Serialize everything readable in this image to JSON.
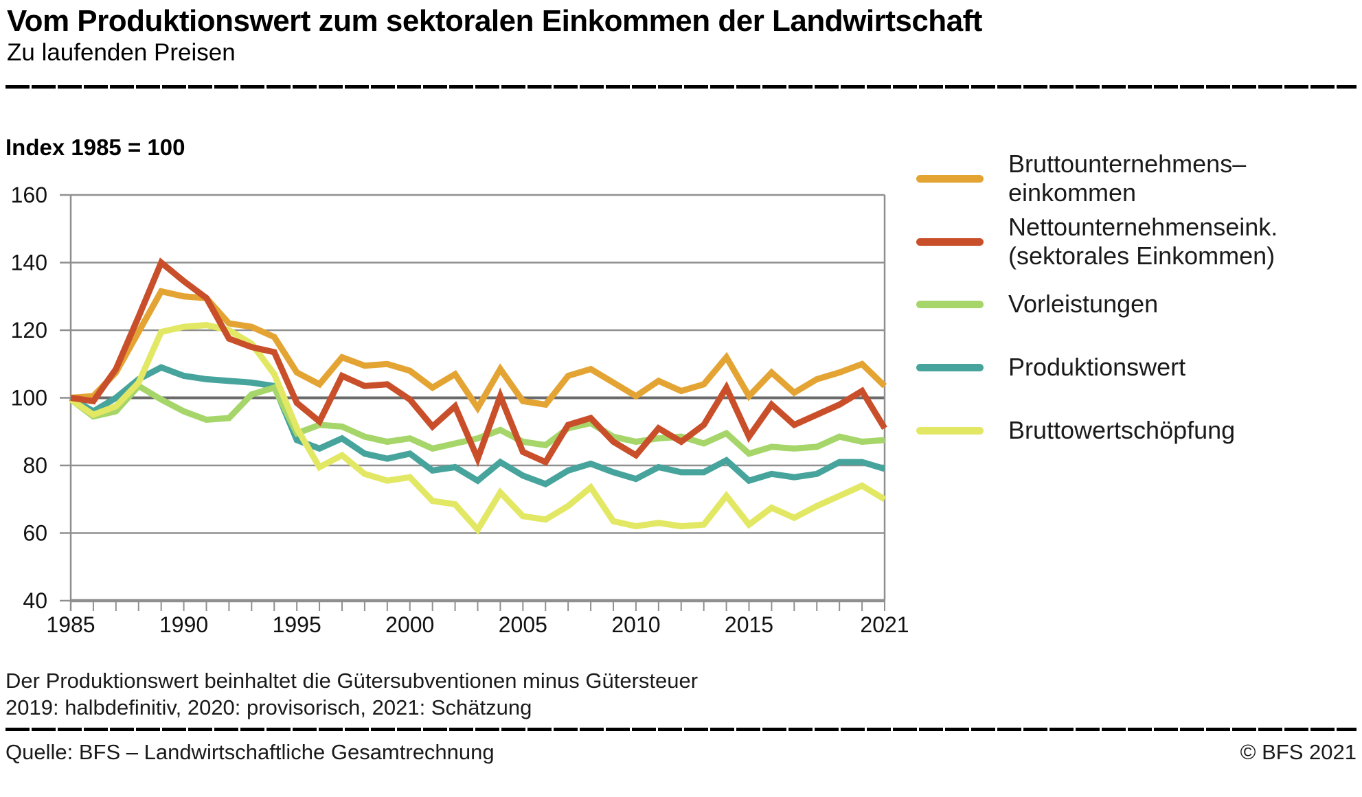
{
  "header": {
    "title": "Vom Produktionswert zum sektoralen Einkommen der Landwirtschaft",
    "subtitle": "Zu laufenden Preisen"
  },
  "colors": {
    "orange": "#E4A433",
    "red": "#C94F2A",
    "green": "#A6D66A",
    "teal": "#46A49C",
    "yellow": "#E2E863",
    "gridline": "#8F8F8F",
    "gridline_dark": "#6B6B6B",
    "axis_text": "#111111"
  },
  "legend": {
    "items": [
      {
        "id": "bruttounternehmenseinkommen",
        "color": "orange",
        "lines": [
          "Bruttounternehmens–",
          "einkommen"
        ]
      },
      {
        "id": "nettounternehmenseinkommen",
        "color": "red",
        "lines": [
          "Nettounternehmenseink.",
          "(sektorales Einkommen)"
        ]
      },
      {
        "id": "vorleistungen",
        "color": "green",
        "lines": [
          "Vorleistungen"
        ]
      },
      {
        "id": "produktionswert",
        "color": "teal",
        "lines": [
          "Produktionswert"
        ]
      },
      {
        "id": "bruttowertschoepfung",
        "color": "yellow",
        "lines": [
          "Bruttowertschöpfung"
        ]
      }
    ]
  },
  "chart_data": {
    "type": "line",
    "ylabel": "Index 1985 = 100",
    "xlabel": "",
    "ylim": [
      40,
      160
    ],
    "grid": true,
    "legend_position": "right",
    "y_ticks": [
      160,
      140,
      120,
      100,
      80,
      60,
      40
    ],
    "x_tick_years": [
      1985,
      1990,
      1995,
      2000,
      2005,
      2010,
      2015,
      2021
    ],
    "x": [
      1985,
      1986,
      1987,
      1988,
      1989,
      1990,
      1991,
      1992,
      1993,
      1994,
      1995,
      1996,
      1997,
      1998,
      1999,
      2000,
      2001,
      2002,
      2003,
      2004,
      2005,
      2006,
      2007,
      2008,
      2009,
      2010,
      2011,
      2012,
      2013,
      2014,
      2015,
      2016,
      2017,
      2018,
      2019,
      2020,
      2021
    ],
    "series": [
      {
        "id": "bruttounternehmenseinkommen",
        "name": "Bruttounternehmenseinkommen",
        "color": "orange",
        "z": 4,
        "values": [
          100,
          100.5,
          107.5,
          119.5,
          131.5,
          130,
          129.5,
          122,
          121,
          118,
          107.5,
          104,
          112,
          109.5,
          110,
          108,
          103,
          107,
          97,
          108.5,
          99,
          98,
          106.5,
          108.5,
          104.5,
          100.5,
          105,
          102,
          104,
          112,
          100.5,
          107.5,
          101.5,
          105.5,
          107.5,
          110,
          103.5
        ]
      },
      {
        "id": "nettounternehmenseinkommen",
        "name": "Nettounternehmenseink. (sektorales Einkommen)",
        "color": "red",
        "z": 5,
        "values": [
          100,
          99,
          108.5,
          124,
          140,
          134.5,
          129.5,
          117.5,
          115,
          113.5,
          98.5,
          93,
          106.5,
          103.5,
          104,
          99.5,
          91.5,
          97.5,
          82,
          100.5,
          84,
          81,
          92,
          94,
          87,
          83,
          91,
          87,
          92,
          103,
          88.5,
          98,
          92,
          95,
          98,
          102,
          91
        ]
      },
      {
        "id": "vorleistungen",
        "name": "Vorleistungen",
        "color": "green",
        "z": 2,
        "values": [
          99.5,
          94.5,
          96,
          103.5,
          99.5,
          96,
          93.5,
          94,
          101,
          103,
          89.5,
          92,
          91.5,
          88.5,
          87,
          88,
          85,
          86.5,
          88,
          90.5,
          87,
          86,
          91,
          92.5,
          88.5,
          87,
          88,
          88.5,
          86.5,
          89.5,
          83.5,
          85.5,
          85,
          85.5,
          88.5,
          87,
          87.5
        ]
      },
      {
        "id": "produktionswert",
        "name": "Produktionswert",
        "color": "teal",
        "z": 1,
        "values": [
          100,
          96,
          100,
          105.5,
          109,
          106.5,
          105.5,
          105,
          104.5,
          103.5,
          87.5,
          85,
          88,
          83.5,
          82,
          83.5,
          78.5,
          79.5,
          75.5,
          81,
          77,
          74.5,
          78.5,
          80.5,
          78,
          76,
          79.5,
          78,
          78,
          81.5,
          75.5,
          77.5,
          76.5,
          77.5,
          81,
          81,
          79
        ]
      },
      {
        "id": "bruttowertschoepfung",
        "name": "Bruttowertschöpfung",
        "color": "yellow",
        "z": 3,
        "values": [
          99.5,
          95,
          97.5,
          104.5,
          119.5,
          121,
          121.5,
          120,
          116,
          107,
          91,
          79.5,
          83,
          77.5,
          75.5,
          76.5,
          69.5,
          68.5,
          61,
          72,
          65,
          64,
          68,
          73.5,
          63.5,
          62,
          63,
          62,
          62.5,
          71,
          62.5,
          67.5,
          64.5,
          68,
          71,
          74,
          70
        ]
      }
    ]
  },
  "footnotes": {
    "line1": "Der Produktionswert beinhaltet die Gütersubventionen minus Gütersteuer",
    "line2": "2019: halbdefinitiv, 2020: provisorisch, 2021: Schätzung"
  },
  "footer": {
    "source": "Quelle: BFS – Landwirtschaftliche Gesamtrechnung",
    "copyright": "© BFS 2021"
  }
}
